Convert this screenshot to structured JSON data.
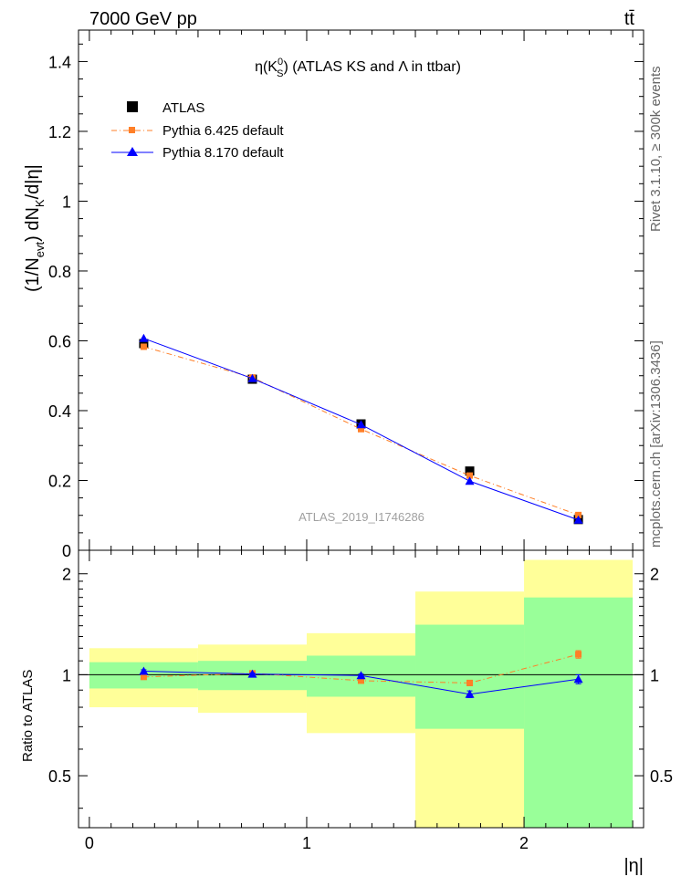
{
  "header": {
    "energy_label": "7000 GeV pp",
    "process_label": "tt̄"
  },
  "side_labels": {
    "rivet": "Rivet 3.1.10, ≥ 300k events",
    "mcplots": "mcplots.cern.ch [arXiv:1306.3436]"
  },
  "chart_data": [
    {
      "type": "scatter",
      "title": "η(K⁰S) (ATLAS KS and Λ in ttbar)",
      "title_parts": {
        "main": "η(K",
        "sup": "0",
        "sub": "S",
        "tail": ") (ATLAS KS and Λ in ttbar)"
      },
      "ylabel": "(1/Nevt) dNK/d|η|",
      "ylabel_parts": {
        "a": "(1/N",
        "sub1": "evt",
        "b": ") dN",
        "sub2": "K",
        "c": "/d|η|"
      },
      "xlabel": "|η|",
      "watermark": "ATLAS_2019_I1746286",
      "xlim": [
        -0.05,
        2.55
      ],
      "ylim": [
        0,
        1.49
      ],
      "yticks": [
        0,
        0.2,
        0.4,
        0.6,
        0.8,
        1,
        1.2,
        1.4
      ],
      "ytick_labels": [
        "0",
        "0.2",
        "0.4",
        "0.6",
        "0.8",
        "1",
        "1.2",
        "1.4"
      ],
      "legend_position": "top-left",
      "series": [
        {
          "name": "ATLAS",
          "color": "#000000",
          "marker": "square",
          "x": [
            0.25,
            0.75,
            1.25,
            1.75,
            2.25
          ],
          "values": [
            0.592,
            0.49,
            0.362,
            0.227,
            0.088
          ]
        },
        {
          "name": "Pythia 6.425 default",
          "color": "#ff7f27",
          "marker": "square-small",
          "line": "dashdot",
          "x": [
            0.25,
            0.75,
            1.25,
            1.75,
            2.25
          ],
          "values": [
            0.583,
            0.495,
            0.347,
            0.214,
            0.101
          ]
        },
        {
          "name": "Pythia 8.170 default",
          "color": "#0000ff",
          "marker": "triangle",
          "line": "solid",
          "x": [
            0.25,
            0.75,
            1.25,
            1.75,
            2.25
          ],
          "values": [
            0.607,
            0.492,
            0.36,
            0.198,
            0.087
          ]
        }
      ]
    },
    {
      "type": "line",
      "ylabel": "Ratio to ATLAS",
      "ylim": [
        0.35,
        2.35
      ],
      "yscale": "log",
      "yticks": [
        0.5,
        1,
        2
      ],
      "ytick_labels": [
        "0.5",
        "1",
        "2"
      ],
      "xticks": [
        0,
        1,
        2
      ],
      "xtick_labels": [
        "0",
        "1",
        "2"
      ],
      "bins": [
        [
          0,
          0.5
        ],
        [
          0.5,
          1
        ],
        [
          1,
          1.5
        ],
        [
          1.5,
          2
        ],
        [
          2,
          2.5
        ]
      ],
      "band_inner": {
        "color": "#99ff99",
        "low": [
          0.91,
          0.9,
          0.86,
          0.69,
          0.35
        ],
        "high": [
          1.09,
          1.1,
          1.14,
          1.41,
          1.7
        ]
      },
      "band_outer": {
        "color": "#ffff99",
        "low": [
          0.8,
          0.77,
          0.67,
          0.35,
          0.35
        ],
        "high": [
          1.2,
          1.23,
          1.33,
          1.77,
          2.2
        ]
      },
      "series": [
        {
          "name": "Pythia 6.425 default",
          "color": "#ff7f27",
          "x": [
            0.25,
            0.75,
            1.25,
            1.75,
            2.25
          ],
          "values": [
            0.985,
            1.01,
            0.96,
            0.945,
            1.15
          ],
          "errors": [
            0.01,
            0.01,
            0.012,
            0.018,
            0.03
          ]
        },
        {
          "name": "Pythia 8.170 default",
          "color": "#0000ff",
          "x": [
            0.25,
            0.75,
            1.25,
            1.75,
            2.25
          ],
          "values": [
            1.025,
            1.005,
            0.995,
            0.875,
            0.97
          ],
          "errors": [
            0.01,
            0.008,
            0.01,
            0.02,
            0.03
          ]
        }
      ]
    }
  ]
}
